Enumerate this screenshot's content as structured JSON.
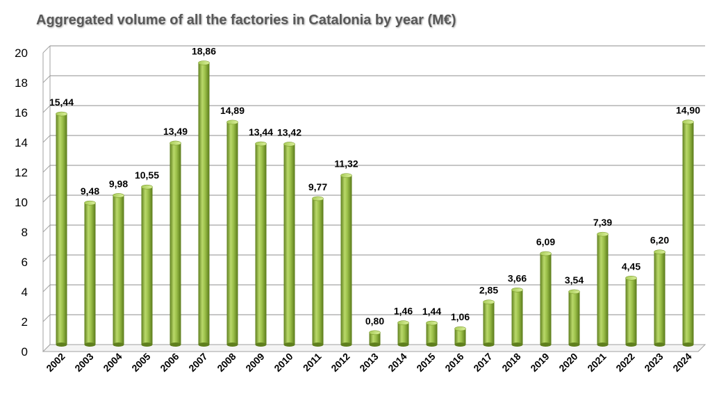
{
  "chart_data": {
    "type": "bar",
    "title": "Aggregated volume of all the factories in Catalonia by year (M€)",
    "xlabel": "",
    "ylabel": "",
    "ylim": [
      0,
      20
    ],
    "yticks": [
      "0",
      "2",
      "4",
      "6",
      "8",
      "10",
      "12",
      "14",
      "16",
      "18",
      "20"
    ],
    "grid": true,
    "legend": "none",
    "bar_color": "#8db33a",
    "categories": [
      "2002",
      "2003",
      "2004",
      "2005",
      "2006",
      "2007",
      "2008",
      "2009",
      "2010",
      "2011",
      "2012",
      "2013",
      "2014",
      "2015",
      "2016",
      "2017",
      "2018",
      "2019",
      "2020",
      "2021",
      "2022",
      "2023",
      "2024"
    ],
    "values": [
      15.44,
      9.48,
      9.98,
      10.55,
      13.49,
      18.86,
      14.89,
      13.44,
      13.42,
      9.77,
      11.32,
      0.8,
      1.46,
      1.44,
      1.06,
      2.85,
      3.66,
      6.09,
      3.54,
      7.39,
      4.45,
      6.2,
      14.9
    ],
    "labels": [
      "15,44",
      "9,48",
      "9,98",
      "10,55",
      "13,49",
      "18,86",
      "14,89",
      "13,44",
      "13,42",
      "9,77",
      "11,32",
      "0,80",
      "1,46",
      "1,44",
      "1,06",
      "2,85",
      "3,66",
      "6,09",
      "3,54",
      "7,39",
      "4,45",
      "6,20",
      "14,90"
    ]
  }
}
